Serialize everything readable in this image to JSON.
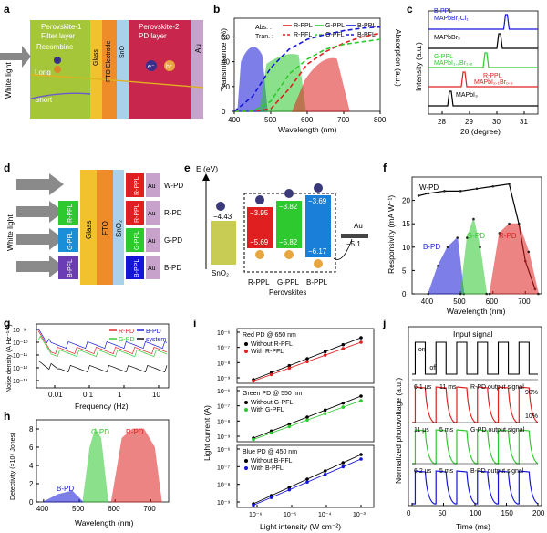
{
  "panels": {
    "a": {
      "letter": "a",
      "white_light": "White light",
      "layer1_title_1": "Perovskite-1",
      "layer1_title_2": "Filter layer",
      "recombine": "Recombine",
      "long": "Long",
      "short": "Short",
      "glass": "Glass",
      "fto": "FTO Electrode",
      "sno2": "SnO",
      "sno2_sub": "2",
      "layer2_title_1": "Perovskite-2",
      "layer2_title_2": "PD layer",
      "au": "Au",
      "electron": "e⁻",
      "hole": "h⁺"
    },
    "b": {
      "letter": "b",
      "ylabel_left": "Transmittance (%)",
      "ylabel_right": "Absorption (a.u.)",
      "xlabel": "Wavelength (nm)",
      "legend_abs": "Abs. :",
      "legend_tran": "Tran. :",
      "legend_items": [
        "R-PPL",
        "G-PPL",
        "B-PPL",
        "R-PFL",
        "G-PFL",
        "B-PFL"
      ],
      "x_ticks": [
        "400",
        "500",
        "600",
        "700",
        "800"
      ],
      "y_ticks": [
        "0",
        "20",
        "40",
        "60"
      ]
    },
    "c": {
      "letter": "c",
      "ylabel": "Intensity (a.u.)",
      "xlabel": "2θ (degree)",
      "x_ticks": [
        "28",
        "29",
        "30",
        "31"
      ],
      "traces": [
        {
          "name1": "B-PPL",
          "name2": "MAPbBr₂Cl₁",
          "color": "#1515d8"
        },
        {
          "name1": "MAPbBr₃",
          "name2": "",
          "color": "#000000"
        },
        {
          "name1": "G-PPL",
          "name2": "MAPbI₁.₂Br₁.₈",
          "color": "#2ec92e"
        },
        {
          "name1": "R-PPL",
          "name2": "MAPbI₂.₁Br₀.₉",
          "color": "#e02020"
        },
        {
          "name1": "MAPbI₃",
          "name2": "",
          "color": "#000000"
        }
      ]
    },
    "d": {
      "letter": "d",
      "white_light": "White light",
      "glass": "Glass",
      "fto": "FTO",
      "sno2": "SnO₂",
      "au": "Au",
      "pfl": [
        "R-PFL",
        "G-PFL",
        "B-PFL"
      ],
      "ppl": [
        "R-PPL",
        "R-PPL",
        "G-PPL",
        "B-PPL"
      ],
      "devices": [
        "W-PD",
        "R-PD",
        "G-PD",
        "B-PD"
      ]
    },
    "e": {
      "letter": "e",
      "axis": "E (eV)",
      "sno2_level": "−4.43",
      "sno2_label": "SnO₂",
      "r_cb": "−3.95",
      "r_vb": "−5.69",
      "g_cb": "−3.82",
      "g_vb": "−5.82",
      "b_cb": "−3.69",
      "b_vb": "−6.17",
      "au_label": "Au",
      "au_level": "−5.1",
      "names": [
        "R-PPL",
        "G-PPL",
        "B-PPL"
      ],
      "perovskites": "Perovskites",
      "electron": "e⁻",
      "hole": "h⁺"
    },
    "f": {
      "letter": "f",
      "ylabel": "Responsivity (mA W⁻¹)",
      "xlabel": "Wavelength (nm)",
      "x_ticks": [
        "400",
        "500",
        "600",
        "700"
      ],
      "y_ticks": [
        "0",
        "5",
        "10",
        "15",
        "20"
      ],
      "labels": [
        "W-PD",
        "B-PD",
        "G-PD",
        "R-PD"
      ]
    },
    "g": {
      "letter": "g",
      "ylabel": "Noise density (A Hz⁻¹ᐟ²)",
      "xlabel": "Frequency (Hz)",
      "x_ticks": [
        "0.01",
        "0.1",
        "1",
        "10"
      ],
      "y_ticks": [
        "10⁻¹³",
        "10⁻¹²",
        "10⁻¹¹",
        "10⁻¹⁰",
        "10⁻⁹"
      ],
      "legend": [
        "R-PD",
        "B-PD",
        "G-PD",
        "system"
      ]
    },
    "h": {
      "letter": "h",
      "ylabel": "Detectivity (×10⁸ Jones)",
      "xlabel": "Wavelength (nm)",
      "x_ticks": [
        "400",
        "500",
        "600",
        "700"
      ],
      "y_ticks": [
        "0",
        "2",
        "4",
        "6",
        "8"
      ],
      "labels": [
        "B-PD",
        "G-PD",
        "R-PD"
      ]
    },
    "i": {
      "letter": "i",
      "ylabel": "Light current (A)",
      "xlabel": "Light intensity (W cm⁻²)",
      "x_ticks": [
        "10⁻⁶",
        "10⁻⁵",
        "10⁻⁴",
        "10⁻³"
      ],
      "y_ticks": [
        "10⁻⁹",
        "10⁻⁸",
        "10⁻⁷",
        "10⁻⁶"
      ],
      "sub": [
        {
          "title": "Red PD @ 650 nm",
          "l1": "Without R-PFL",
          "l2": "With R-PFL",
          "color": "#e02020"
        },
        {
          "title": "Green PD @ 550 nm",
          "l1": "Without G-PFL",
          "l2": "With G-PFL",
          "color": "#2ec92e"
        },
        {
          "title": "Blue PD @ 450 nm",
          "l1": "Without B-PFL",
          "l2": "With B-PFL",
          "color": "#1515d8"
        }
      ]
    },
    "j": {
      "letter": "j",
      "input": "Input signal",
      "on": "on",
      "off": "off",
      "ylabel": "Normalized photovoltage (a.u.)",
      "xlabel": "Time (ms)",
      "x_ticks": [
        "0",
        "50",
        "100",
        "150",
        "200"
      ],
      "sub": [
        {
          "rise": "6.1 μs",
          "fall": "11 ms",
          "name": "R-PD output signal",
          "color": "#e02020"
        },
        {
          "rise": "11 μs",
          "fall": "5 ms",
          "name": "G-PD output signal",
          "color": "#2ec92e"
        },
        {
          "rise": "6.2 μs",
          "fall": "5 ms",
          "name": "B-PD output signal",
          "color": "#1515d8"
        }
      ],
      "p90": "90%",
      "p10": "10%"
    }
  },
  "chart_data": [
    {
      "panel": "b",
      "type": "line",
      "xlabel": "Wavelength (nm)",
      "ylabel": "Transmittance (%)",
      "xlim": [
        400,
        800
      ],
      "ylim": [
        0,
        75
      ],
      "series": [
        {
          "name": "R-PFL",
          "x": [
            400,
            450,
            500,
            550,
            600,
            650,
            700,
            750,
            800
          ],
          "values": [
            0,
            0,
            2,
            18,
            38,
            48,
            55,
            60,
            63
          ]
        },
        {
          "name": "G-PFL",
          "x": [
            400,
            450,
            500,
            550,
            600,
            650,
            700,
            750,
            800
          ],
          "values": [
            0,
            0,
            8,
            30,
            42,
            50,
            54,
            56,
            58
          ]
        },
        {
          "name": "B-PFL",
          "x": [
            400,
            450,
            500,
            550,
            600,
            650,
            700,
            750,
            800
          ],
          "values": [
            0,
            12,
            35,
            50,
            58,
            62,
            65,
            67,
            68
          ]
        }
      ]
    },
    {
      "panel": "c",
      "type": "line",
      "xlabel": "2θ (degree)",
      "xlim": [
        27.5,
        31.5
      ],
      "series": [
        {
          "name": "MAPbI3",
          "peak": 28.3
        },
        {
          "name": "R-PPL",
          "peak": 28.8
        },
        {
          "name": "G-PPL",
          "peak": 29.6
        },
        {
          "name": "MAPbBr3",
          "peak": 30.1
        },
        {
          "name": "B-PPL",
          "peak": 30.35
        }
      ]
    },
    {
      "panel": "f",
      "type": "line",
      "xlabel": "Wavelength (nm)",
      "ylabel": "Responsivity (mA W-1)",
      "xlim": [
        350,
        750
      ],
      "ylim": [
        0,
        25
      ],
      "series": [
        {
          "name": "W-PD",
          "x": [
            370,
            400,
            450,
            500,
            550,
            600,
            650,
            680,
            700,
            730
          ],
          "values": [
            21,
            21.5,
            22,
            22,
            22.5,
            23,
            23.5,
            15,
            7,
            1
          ]
        },
        {
          "name": "B-PD",
          "x": [
            400,
            430,
            460,
            490,
            510
          ],
          "values": [
            0,
            6,
            10,
            12,
            0
          ]
        },
        {
          "name": "G-PD",
          "x": [
            500,
            520,
            540,
            560,
            580
          ],
          "values": [
            0,
            12,
            16,
            10,
            0
          ]
        },
        {
          "name": "R-PD",
          "x": [
            590,
            620,
            650,
            680,
            710,
            740
          ],
          "values": [
            0,
            13,
            15,
            15,
            9,
            0
          ]
        }
      ]
    },
    {
      "panel": "h",
      "type": "line",
      "xlabel": "Wavelength (nm)",
      "ylabel": "Detectivity (x10^8 Jones)",
      "xlim": [
        380,
        750
      ],
      "ylim": [
        0,
        9
      ],
      "series": [
        {
          "name": "B-PD",
          "x": [
            400,
            440,
            480,
            510
          ],
          "values": [
            0,
            0.8,
            1.2,
            0
          ]
        },
        {
          "name": "G-PD",
          "x": [
            510,
            530,
            545,
            560,
            580
          ],
          "values": [
            0,
            6,
            8,
            7,
            0
          ]
        },
        {
          "name": "R-PD",
          "x": [
            590,
            620,
            650,
            680,
            710,
            730
          ],
          "values": [
            0,
            7,
            8,
            8,
            6,
            0
          ]
        }
      ]
    },
    {
      "panel": "j",
      "type": "line",
      "xlabel": "Time (ms)",
      "xlim": [
        0,
        200
      ],
      "series": [
        {
          "name": "Input",
          "period_ms": 33,
          "duty": 0.5
        },
        {
          "name": "R-PD rise",
          "value": "6.1 us"
        },
        {
          "name": "G-PD rise",
          "value": "11 us"
        },
        {
          "name": "B-PD rise",
          "value": "6.2 us"
        }
      ]
    }
  ],
  "colors": {
    "red": "#e02020",
    "green": "#2ec92e",
    "blue": "#1515d8",
    "yellow": "#f5c518"
  }
}
